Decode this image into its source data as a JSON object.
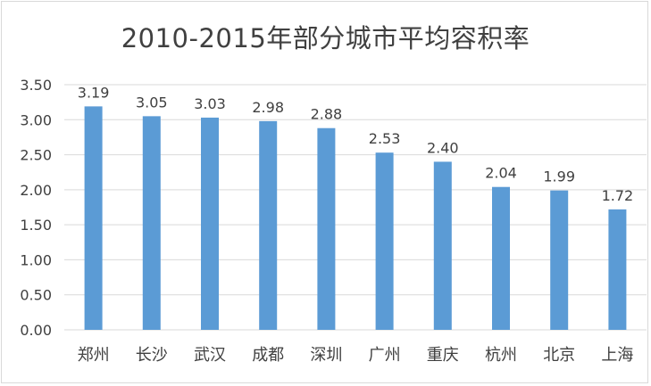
{
  "chart_data": {
    "type": "bar",
    "title": "2010-2015年部分城市平均容积率",
    "xlabel": "",
    "ylabel": "",
    "categories": [
      "郑州",
      "长沙",
      "武汉",
      "成都",
      "深圳",
      "广州",
      "重庆",
      "杭州",
      "北京",
      "上海"
    ],
    "values": [
      3.19,
      3.05,
      3.03,
      2.98,
      2.88,
      2.53,
      2.4,
      2.04,
      1.99,
      1.72
    ],
    "data_labels": [
      "3.19",
      "3.05",
      "3.03",
      "2.98",
      "2.88",
      "2.53",
      "2.40",
      "2.04",
      "1.99",
      "1.72"
    ],
    "yticks": [
      "0.00",
      "0.50",
      "1.00",
      "1.50",
      "2.00",
      "2.50",
      "3.00",
      "3.50"
    ],
    "ylim": [
      0,
      3.5
    ],
    "grid": true,
    "legend": "none",
    "bar_color": "#5b9bd5",
    "grid_color": "#d9d9d9"
  }
}
